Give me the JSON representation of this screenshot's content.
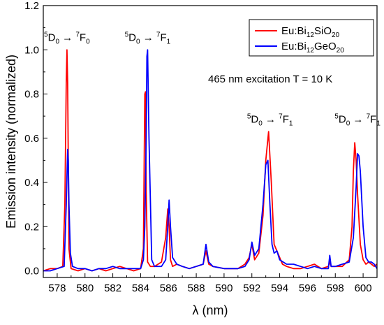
{
  "chart_data": {
    "type": "line",
    "xlabel": "λ (nm)",
    "ylabel": "Emission intensity (normalized)",
    "xlim": [
      577,
      601
    ],
    "ylim": [
      -0.03,
      1.2
    ],
    "xticks": [
      578,
      580,
      582,
      584,
      586,
      588,
      590,
      592,
      594,
      596,
      598,
      600
    ],
    "yticks": [
      0.0,
      0.2,
      0.4,
      0.6,
      0.8,
      1.0,
      1.2
    ],
    "xtick_labels": [
      "578",
      "580",
      "582",
      "584",
      "586",
      "588",
      "590",
      "592",
      "594",
      "596",
      "598",
      "600"
    ],
    "ytick_labels": [
      "0.0",
      "0.2",
      "0.4",
      "0.6",
      "0.8",
      "1.0",
      "1.2"
    ],
    "grid": false,
    "legend_position": "top-right",
    "series": [
      {
        "name": "Eu:Bi12SiO20",
        "name_base": "Eu:Bi",
        "name_sub1": "12",
        "name_mid": "SiO",
        "name_sub2": "20",
        "color": "#ff0000",
        "x": [
          577.0,
          577.5,
          578.0,
          578.4,
          578.55,
          578.65,
          578.7,
          578.75,
          578.85,
          579.0,
          579.5,
          580.0,
          580.5,
          581.0,
          581.5,
          582.0,
          582.5,
          583.0,
          583.5,
          584.0,
          584.2,
          584.3,
          584.35,
          584.4,
          584.5,
          584.7,
          585.0,
          585.5,
          585.8,
          585.95,
          586.05,
          586.15,
          586.3,
          586.6,
          587.0,
          587.5,
          588.0,
          588.5,
          588.7,
          588.9,
          589.2,
          590.0,
          590.5,
          591.0,
          591.5,
          591.8,
          592.0,
          592.2,
          592.5,
          592.8,
          593.0,
          593.2,
          593.4,
          593.6,
          593.8,
          594.0,
          594.2,
          594.5,
          595.0,
          595.5,
          596.0,
          596.5,
          597.0,
          597.5,
          597.6,
          597.7,
          598.0,
          598.5,
          599.0,
          599.2,
          599.3,
          599.4,
          599.5,
          599.6,
          599.8,
          600.0,
          600.2,
          600.4,
          600.6,
          600.8,
          601.0
        ],
        "y": [
          0.0,
          0.01,
          0.01,
          0.02,
          0.3,
          0.85,
          1.0,
          0.85,
          0.1,
          0.01,
          0.0,
          0.01,
          0.0,
          0.01,
          0.0,
          0.01,
          0.02,
          0.01,
          0.0,
          0.01,
          0.1,
          0.8,
          0.81,
          0.35,
          0.04,
          0.02,
          0.02,
          0.04,
          0.15,
          0.28,
          0.2,
          0.05,
          0.02,
          0.03,
          0.02,
          0.01,
          0.02,
          0.03,
          0.09,
          0.03,
          0.02,
          0.01,
          0.01,
          0.01,
          0.03,
          0.06,
          0.12,
          0.05,
          0.08,
          0.25,
          0.5,
          0.63,
          0.4,
          0.12,
          0.09,
          0.06,
          0.03,
          0.02,
          0.01,
          0.01,
          0.02,
          0.03,
          0.01,
          0.02,
          0.04,
          0.02,
          0.02,
          0.02,
          0.05,
          0.2,
          0.45,
          0.58,
          0.5,
          0.35,
          0.12,
          0.05,
          0.03,
          0.04,
          0.03,
          0.02,
          0.03
        ]
      },
      {
        "name": "Eu:Bi12GeO20",
        "name_base": "Eu:Bi",
        "name_sub1": "12",
        "name_mid": "GeO",
        "name_sub2": "20",
        "color": "#0000ff",
        "x": [
          577.0,
          577.5,
          578.0,
          578.5,
          578.65,
          578.75,
          578.8,
          578.85,
          578.95,
          579.1,
          579.5,
          580.0,
          580.5,
          581.0,
          581.5,
          582.0,
          582.5,
          583.0,
          583.5,
          584.0,
          584.2,
          584.3,
          584.4,
          584.45,
          584.5,
          584.6,
          584.8,
          585.0,
          585.5,
          585.8,
          585.95,
          586.05,
          586.15,
          586.3,
          586.6,
          587.0,
          587.5,
          588.0,
          588.5,
          588.7,
          588.9,
          589.2,
          590.0,
          590.5,
          591.0,
          591.5,
          591.8,
          592.0,
          592.2,
          592.5,
          592.8,
          593.0,
          593.15,
          593.3,
          593.45,
          593.6,
          593.8,
          594.0,
          594.5,
          595.0,
          595.5,
          596.0,
          596.5,
          597.0,
          597.5,
          597.6,
          597.7,
          598.0,
          598.5,
          599.0,
          599.3,
          599.5,
          599.6,
          599.7,
          599.8,
          600.0,
          600.2,
          600.4,
          600.6,
          600.8,
          601.0
        ],
        "y": [
          0.0,
          0.0,
          0.01,
          0.02,
          0.3,
          0.55,
          0.5,
          0.3,
          0.08,
          0.02,
          0.01,
          0.01,
          0.0,
          0.01,
          0.01,
          0.02,
          0.01,
          0.01,
          0.01,
          0.01,
          0.05,
          0.2,
          0.6,
          0.97,
          1.0,
          0.6,
          0.05,
          0.02,
          0.02,
          0.05,
          0.2,
          0.32,
          0.2,
          0.06,
          0.03,
          0.02,
          0.01,
          0.02,
          0.03,
          0.12,
          0.04,
          0.02,
          0.01,
          0.01,
          0.01,
          0.02,
          0.05,
          0.13,
          0.07,
          0.1,
          0.3,
          0.48,
          0.5,
          0.3,
          0.12,
          0.08,
          0.09,
          0.05,
          0.03,
          0.03,
          0.02,
          0.01,
          0.02,
          0.01,
          0.01,
          0.07,
          0.02,
          0.02,
          0.03,
          0.04,
          0.15,
          0.38,
          0.53,
          0.52,
          0.45,
          0.2,
          0.06,
          0.04,
          0.04,
          0.03,
          0.01
        ]
      }
    ],
    "annotations": [
      {
        "x": 578.7,
        "y": 1.04,
        "pre": "5",
        "s1": "D",
        "sub1": "0",
        "arrow": " → ",
        "pre2": "7",
        "s2": "F",
        "sub2": "0"
      },
      {
        "x": 584.5,
        "y": 1.04,
        "pre": "5",
        "s1": "D",
        "sub1": "0",
        "arrow": " → ",
        "pre2": "7",
        "s2": "F",
        "sub2": "1"
      },
      {
        "x": 593.3,
        "y": 0.67,
        "pre": "5",
        "s1": "D",
        "sub1": "0",
        "arrow": " → ",
        "pre2": "7",
        "s2": "F",
        "sub2": "1"
      },
      {
        "x": 599.6,
        "y": 0.67,
        "pre": "5",
        "s1": "D",
        "sub1": "0",
        "arrow": " → ",
        "pre2": "7",
        "s2": "F",
        "sub2": "1"
      }
    ],
    "note_text": "465 nm excitation T = 10 K"
  }
}
